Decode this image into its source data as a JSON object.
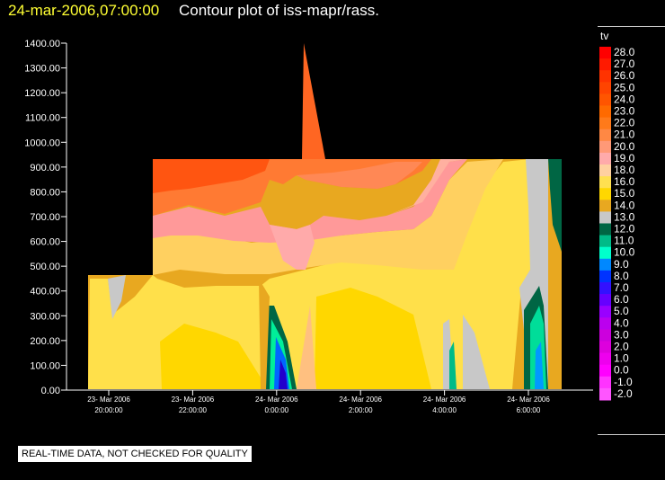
{
  "title": {
    "date": "24-mar-2006,07:00:00",
    "text": "Contour plot of iss-mapr/rass."
  },
  "note": "REAL-TIME DATA, NOT CHECKED FOR QUALITY",
  "chart_data": {
    "type": "heatmap",
    "title": "Contour plot of iss-mapr/rass.",
    "xlabel": "",
    "ylabel": "",
    "ylim": [
      0,
      1400
    ],
    "yticks": [
      "0.00",
      "100.00",
      "200.00",
      "300.00",
      "400.00",
      "500.00",
      "600.00",
      "700.00",
      "800.00",
      "900.00",
      "1000.00",
      "1100.00",
      "1200.00",
      "1300.00",
      "1400.00"
    ],
    "xticks": [
      [
        "23- Mar 2006",
        "20:00:00"
      ],
      [
        "23- Mar 2006",
        "22:00:00"
      ],
      [
        "24- Mar 2006",
        "0:00:00"
      ],
      [
        "24- Mar 2006",
        "2:00:00"
      ],
      [
        "24- Mar 2006",
        "4:00:00"
      ],
      [
        "24- Mar 2006",
        "6:00:00"
      ]
    ],
    "colorbar": {
      "label": "tv",
      "levels": [
        "28.0",
        "27.0",
        "26.0",
        "25.0",
        "24.0",
        "23.0",
        "22.0",
        "21.0",
        "20.0",
        "19.0",
        "18.0",
        "16.0",
        "15.0",
        "14.0",
        "13.0",
        "12.0",
        "11.0",
        "10.0",
        "9.0",
        "8.0",
        "7.0",
        "6.0",
        "5.0",
        "4.0",
        "3.0",
        "2.0",
        "1.0",
        "0.0",
        "-1.0",
        "-2.0"
      ],
      "colors": [
        "#ff0000",
        "#ff1a00",
        "#ff3300",
        "#ff4400",
        "#ff5500",
        "#ff6a00",
        "#ff7a1a",
        "#ff8844",
        "#ff9977",
        "#ffaaaa",
        "#ffd0a0",
        "#ffe050",
        "#ffd700",
        "#e8a820",
        "#c8c8c8",
        "#006644",
        "#00bb88",
        "#00ffcc",
        "#0088ff",
        "#0033ff",
        "#3311ff",
        "#6600ff",
        "#9900ff",
        "#bb00ee",
        "#cc00dd",
        "#dd00dd",
        "#ee00ee",
        "#ff00ff",
        "#ff33ff",
        "#ff55ff"
      ]
    },
    "grid": false
  }
}
